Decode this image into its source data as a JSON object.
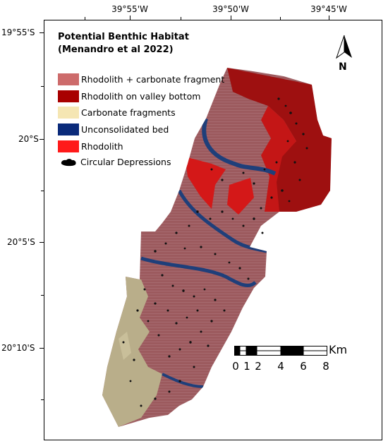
{
  "axes": {
    "top_labels": [
      "39°55'W",
      "39°50'W",
      "39°45'W"
    ],
    "left_labels": [
      "19°55'S",
      "20°S",
      "20°5'S",
      "20°10'S"
    ]
  },
  "legend": {
    "title_line1": "Potential Benthic Habitat",
    "title_line2": "(Menandro et al 2022)",
    "items": [
      {
        "label": "Rhodolith + carbonate fragment",
        "color": "#cd6b6b"
      },
      {
        "label": "Rhodolith on valley bottom",
        "color": "#a80000"
      },
      {
        "label": "Carbonate fragments",
        "color": "#f5e6b3"
      },
      {
        "label": "Unconsolidated bed",
        "color": "#0a2a7a"
      },
      {
        "label": "Rhodolith",
        "color": "#ff1a1a"
      }
    ],
    "depressions_label": "Circular Depressions",
    "depressions_color": "#000000"
  },
  "scale_bar": {
    "labels": [
      "0",
      "1",
      "2",
      "4",
      "6",
      "8"
    ],
    "unit": "Km"
  },
  "north_arrow": {
    "letter": "N"
  },
  "colors": {
    "habitat_main": "#9c5a5e",
    "habitat_bright_red": "#d41818",
    "habitat_dark_red": "#9e1010",
    "habitat_sand": "#b9ae8a",
    "channel_blue": "#1f3f7a",
    "depression": "#111111"
  }
}
